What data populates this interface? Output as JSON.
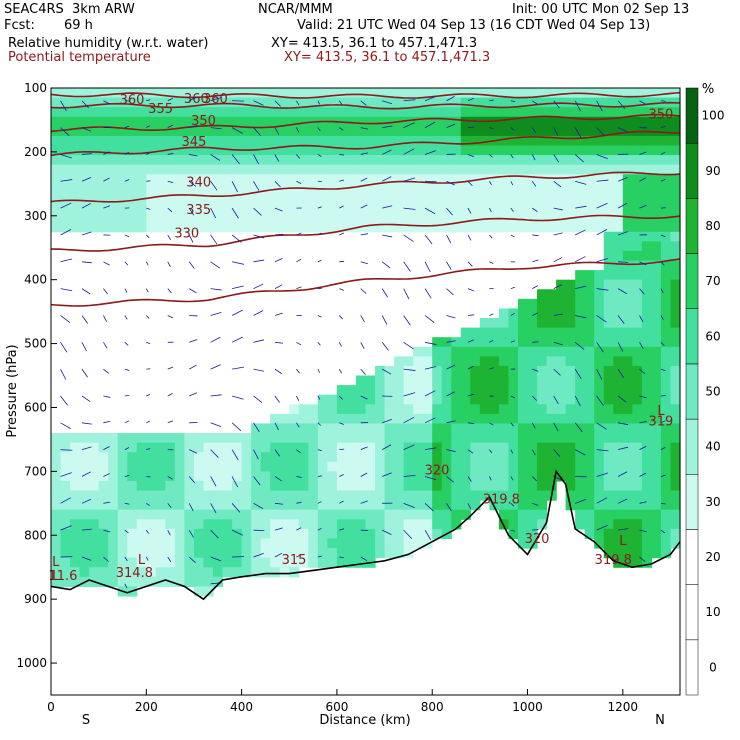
{
  "header": {
    "model": "SEAC4RS  3km ARW",
    "center": "NCAR/MMM",
    "init": "Init: 00 UTC Mon 02 Sep 13",
    "fcst_label": "Fcst:",
    "fcst_value": "69 h",
    "valid": "Valid: 21 UTC Wed 04 Sep 13 (16 CDT Wed 04 Sep 13)",
    "field1": "Relative humidity (w.r.t. water)",
    "xy1": "XY= 413.5, 36.1 to 457.1,471.3",
    "field2": "Potential temperature",
    "xy2": "XY= 413.5, 36.1 to 457.1,471.3"
  },
  "chart_data": {
    "type": "heatmap",
    "xlabel": "Distance (km)",
    "ylabel": "Pressure (hPa)",
    "xlim": [
      0,
      1320
    ],
    "ylim": [
      100,
      1050
    ],
    "y_scale": "linear",
    "x_ticks": [
      "0",
      "200",
      "400",
      "600",
      "800",
      "1000",
      "1200"
    ],
    "y_ticks": [
      "100",
      "200",
      "300",
      "400",
      "500",
      "600",
      "700",
      "800",
      "900",
      "1000"
    ],
    "end_labels": {
      "left": "S",
      "right": "N"
    },
    "colorbar": {
      "unit": "%",
      "labels": [
        "0",
        "10",
        "20",
        "30",
        "40",
        "50",
        "60",
        "70",
        "80",
        "90",
        "100"
      ],
      "colors": [
        "#ffffff",
        "#ffffff",
        "#ffffff",
        "#ccfaf0",
        "#9ff2dc",
        "#6ee9c2",
        "#43df9e",
        "#28cf62",
        "#1eb332",
        "#0f8c1e",
        "#066314"
      ],
      "levels": [
        -5,
        5,
        15,
        25,
        35,
        45,
        55,
        65,
        75,
        85,
        95,
        105
      ]
    },
    "theta_contours": [
      {
        "label": "360",
        "pressure": [
          110,
          112,
          113,
          112,
          110
        ],
        "label_pos": [
          [
            170,
            117
          ],
          [
            305,
            116
          ],
          [
            345,
            116
          ]
        ]
      },
      {
        "label": "355",
        "pressure": [
          128,
          127,
          130,
          127,
          126
        ],
        "label_pos": [
          [
            230,
            131
          ]
        ]
      },
      {
        "label": "350",
        "pressure": [
          165,
          162,
          153,
          148,
          144
        ],
        "label_pos": [
          [
            320,
            150
          ],
          [
            1280,
            140
          ]
        ]
      },
      {
        "label": "345",
        "pressure": [
          205,
          195,
          192,
          180,
          168
        ],
        "label_pos": [
          [
            300,
            183
          ]
        ]
      },
      {
        "label": "340",
        "pressure": [
          280,
          268,
          252,
          240,
          232
        ],
        "label_pos": [
          [
            310,
            246
          ]
        ]
      },
      {
        "label": "335",
        "pressure": [
          355,
          345,
          318,
          305,
          300
        ],
        "label_pos": [
          [
            310,
            289
          ]
        ]
      },
      {
        "label": "330",
        "pressure": [
          440,
          430,
          402,
          380,
          370
        ],
        "label_pos": [
          [
            285,
            326
          ]
        ]
      }
    ],
    "annotations": [
      {
        "text": "320",
        "x": 810,
        "p": 705
      },
      {
        "text": "319.8",
        "x": 945,
        "p": 750
      },
      {
        "text": "320",
        "x": 1020,
        "p": 812
      },
      {
        "text": "L",
        "x": 1200,
        "p": 815
      },
      {
        "text": "319.8",
        "x": 1180,
        "p": 845
      },
      {
        "text": "319",
        "x": 1280,
        "p": 628
      },
      {
        "text": "315",
        "x": 510,
        "p": 845
      },
      {
        "text": "L",
        "x": 190,
        "p": 845
      },
      {
        "text": "314.8",
        "x": 175,
        "p": 865
      },
      {
        "text": "L",
        "x": 10,
        "p": 848
      },
      {
        "text": "L",
        "x": 1280,
        "p": 612
      },
      {
        "text": "L",
        "x": 10,
        "p": 870
      },
      {
        "text": "11.6",
        "x": 25,
        "p": 870
      }
    ],
    "terrain_pressure": [
      [
        0,
        880
      ],
      [
        40,
        885
      ],
      [
        80,
        870
      ],
      [
        120,
        880
      ],
      [
        160,
        890
      ],
      [
        200,
        880
      ],
      [
        240,
        870
      ],
      [
        280,
        880
      ],
      [
        320,
        900
      ],
      [
        360,
        870
      ],
      [
        400,
        865
      ],
      [
        450,
        860
      ],
      [
        500,
        860
      ],
      [
        550,
        855
      ],
      [
        600,
        850
      ],
      [
        650,
        845
      ],
      [
        700,
        840
      ],
      [
        750,
        830
      ],
      [
        800,
        810
      ],
      [
        850,
        790
      ],
      [
        880,
        770
      ],
      [
        920,
        740
      ],
      [
        960,
        800
      ],
      [
        1000,
        830
      ],
      [
        1040,
        780
      ],
      [
        1060,
        700
      ],
      [
        1080,
        720
      ],
      [
        1100,
        790
      ],
      [
        1140,
        810
      ],
      [
        1180,
        840
      ],
      [
        1220,
        850
      ],
      [
        1260,
        845
      ],
      [
        1300,
        830
      ],
      [
        1320,
        810
      ]
    ]
  }
}
